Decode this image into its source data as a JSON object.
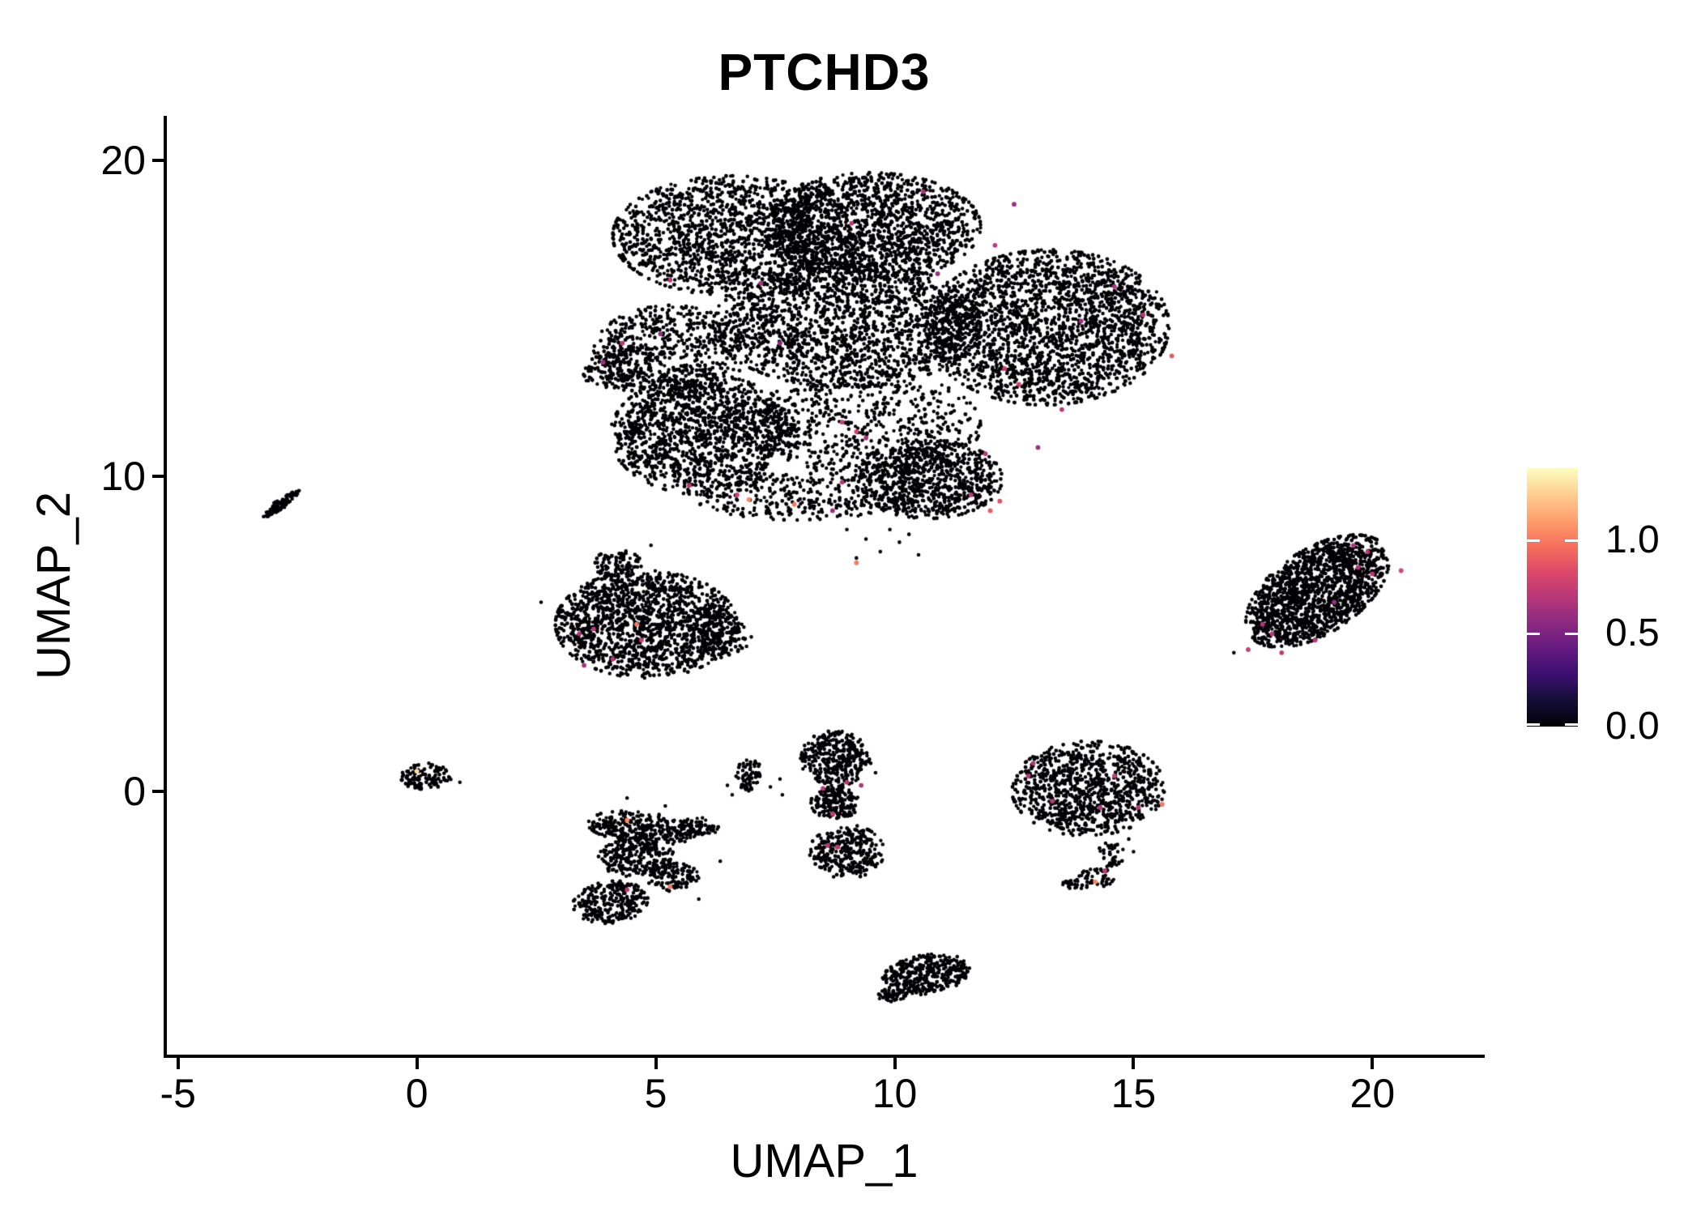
{
  "title": "PTCHD3",
  "axis": {
    "x": {
      "label": "UMAP_1",
      "tick_labels": [
        "-5",
        "0",
        "5",
        "10",
        "15",
        "20"
      ],
      "tick_values": [
        -5,
        0,
        5,
        10,
        15,
        20
      ],
      "range": [
        -5.25,
        22.3
      ]
    },
    "y": {
      "label": "UMAP_2",
      "tick_labels": [
        "0",
        "10",
        "20"
      ],
      "tick_values": [
        0,
        10,
        20
      ],
      "range": [
        -8.35,
        21.4
      ]
    }
  },
  "legend": {
    "tick_labels": [
      "1.0",
      "0.5",
      "0.0"
    ],
    "tick_values": [
      1.0,
      0.5,
      0.0
    ],
    "bar_min": 0.0,
    "bar_max": 1.387,
    "colormap": "magma",
    "gradient_stops": [
      "#000004",
      "#140E36",
      "#3B0F70",
      "#641A80",
      "#8C2981",
      "#B73779",
      "#DE4968",
      "#F76F5C",
      "#FE9F6D",
      "#FECE91",
      "#FCFDBF"
    ]
  },
  "style": {
    "background": "#FFFFFF",
    "axis_color": "#000000",
    "text_color": "#000000"
  },
  "chart_data": {
    "type": "scatter",
    "description": "UMAP feature plot of PTCHD3 expression in single cells; most cells have zero expression (black, magma 0), sparse expressing cells colored on magma scale up to ~1.39",
    "x_range": [
      -5.25,
      22.3
    ],
    "y_range": [
      -8.35,
      21.4
    ],
    "point_radius_px": 2.3,
    "expressing_point_radius_px": 2.9,
    "zero_color": "#000004",
    "clusters": [
      {
        "id": "main-top-a",
        "cx": 6.6,
        "cy": 17.6,
        "rx": 2.5,
        "ry": 1.9,
        "rot": 0,
        "n": 1500
      },
      {
        "id": "main-top-b",
        "cx": 9.5,
        "cy": 17.9,
        "rx": 2.3,
        "ry": 1.7,
        "rot": 0,
        "n": 1500
      },
      {
        "id": "main-right",
        "cx": 13.2,
        "cy": 14.7,
        "rx": 2.55,
        "ry": 2.45,
        "rot": 15,
        "n": 2200
      },
      {
        "id": "main-mid",
        "cx": 9.0,
        "cy": 14.8,
        "rx": 2.8,
        "ry": 2.0,
        "rot": 0,
        "n": 1700
      },
      {
        "id": "main-left-wedge",
        "cx": 5.3,
        "cy": 13.9,
        "rx": 1.6,
        "ry": 1.5,
        "rot": 0,
        "n": 600
      },
      {
        "id": "main-left-tip",
        "cx": 4.3,
        "cy": 13.4,
        "rx": 0.85,
        "ry": 0.7,
        "rot": 30,
        "n": 150
      },
      {
        "id": "main-lower-left",
        "cx": 6.0,
        "cy": 11.3,
        "rx": 1.95,
        "ry": 1.9,
        "rot": 0,
        "n": 1400
      },
      {
        "id": "main-lower-mid",
        "cx": 9.4,
        "cy": 11.6,
        "rx": 2.4,
        "ry": 1.7,
        "rot": 0,
        "n": 600
      },
      {
        "id": "main-bottom-knot",
        "cx": 10.7,
        "cy": 9.9,
        "rx": 1.55,
        "ry": 1.25,
        "rot": 0,
        "n": 800
      },
      {
        "id": "main-bottom-edge",
        "cx": 8.0,
        "cy": 9.35,
        "rx": 2.2,
        "ry": 0.75,
        "rot": 0,
        "n": 300
      },
      {
        "id": "left-streak",
        "cx": -2.85,
        "cy": 9.1,
        "rx": 0.6,
        "ry": 0.11,
        "rot": 49,
        "n": 80
      },
      {
        "id": "left-streak-knot",
        "cx": -2.87,
        "cy": 9.07,
        "rx": 0.16,
        "ry": 0.16,
        "rot": 0,
        "n": 25
      },
      {
        "id": "midleft",
        "cx": 4.8,
        "cy": 5.3,
        "rx": 1.9,
        "ry": 1.7,
        "rot": 0,
        "n": 1500
      },
      {
        "id": "midleft-bump",
        "cx": 4.2,
        "cy": 7.2,
        "rx": 0.5,
        "ry": 0.45,
        "rot": 0,
        "n": 90
      },
      {
        "id": "midleft-east",
        "cx": 6.3,
        "cy": 5.0,
        "rx": 0.6,
        "ry": 0.85,
        "rot": 0,
        "n": 120
      },
      {
        "id": "origin-dot",
        "cx": 0.2,
        "cy": 0.5,
        "rx": 0.55,
        "ry": 0.42,
        "rot": 10,
        "n": 120
      },
      {
        "id": "sblob-top",
        "cx": 4.7,
        "cy": -1.15,
        "rx": 1.15,
        "ry": 0.5,
        "rot": -10,
        "n": 300
      },
      {
        "id": "sblob-mid",
        "cx": 4.6,
        "cy": -2.1,
        "rx": 0.8,
        "ry": 0.6,
        "rot": 0,
        "n": 240
      },
      {
        "id": "sblob-foot",
        "cx": 4.05,
        "cy": -3.5,
        "rx": 0.8,
        "ry": 0.65,
        "rot": 20,
        "n": 260
      },
      {
        "id": "sblob-bridge",
        "cx": 5.35,
        "cy": -2.7,
        "rx": 0.55,
        "ry": 0.45,
        "rot": 0,
        "n": 110
      },
      {
        "id": "sblob-wing",
        "cx": 5.9,
        "cy": -1.1,
        "rx": 0.45,
        "ry": 0.3,
        "rot": 0,
        "n": 60
      },
      {
        "id": "crescent",
        "cx": 6.95,
        "cy": 0.55,
        "rx": 0.27,
        "ry": 0.52,
        "rot": 0,
        "n": 70
      },
      {
        "id": "column-top",
        "cx": 8.75,
        "cy": 1.05,
        "rx": 0.72,
        "ry": 0.88,
        "rot": 0,
        "n": 320
      },
      {
        "id": "column-mid",
        "cx": 8.75,
        "cy": -0.35,
        "rx": 0.5,
        "ry": 0.55,
        "rot": 0,
        "n": 180
      },
      {
        "id": "column-bottom",
        "cx": 9.0,
        "cy": -1.9,
        "rx": 0.78,
        "ry": 0.85,
        "rot": 0,
        "n": 300
      },
      {
        "id": "round-right",
        "cx": 14.05,
        "cy": 0.1,
        "rx": 1.6,
        "ry": 1.5,
        "rot": 10,
        "n": 950
      },
      {
        "id": "round-tail-a",
        "cx": 14.55,
        "cy": -1.95,
        "rx": 0.28,
        "ry": 0.45,
        "rot": 0,
        "n": 40
      },
      {
        "id": "round-tail-b",
        "cx": 14.25,
        "cy": -2.7,
        "rx": 0.4,
        "ry": 0.28,
        "rot": -20,
        "n": 45
      },
      {
        "id": "round-tail-c",
        "cx": 13.75,
        "cy": -2.95,
        "rx": 0.3,
        "ry": 0.18,
        "rot": 0,
        "n": 25
      },
      {
        "id": "bottom-comma",
        "cx": 10.65,
        "cy": -5.8,
        "rx": 0.95,
        "ry": 0.62,
        "rot": 20,
        "n": 360
      },
      {
        "id": "bottom-comma-tip",
        "cx": 9.95,
        "cy": -6.45,
        "rx": 0.3,
        "ry": 0.22,
        "rot": 0,
        "n": 45
      },
      {
        "id": "far-right",
        "cx": 18.85,
        "cy": 6.35,
        "rx": 2.05,
        "ry": 1.1,
        "rot": 54,
        "n": 1500
      }
    ],
    "stray_points": [
      [
        4.4,
        -0.2
      ],
      [
        5.2,
        -0.45
      ],
      [
        6.15,
        -1.2
      ],
      [
        6.35,
        -2.2
      ],
      [
        5.9,
        -3.4
      ],
      [
        9.5,
        0.9
      ],
      [
        9.6,
        0.6
      ],
      [
        7.4,
        0.15
      ],
      [
        7.6,
        0.4
      ],
      [
        7.65,
        -0.1
      ],
      [
        6.9,
        4.6
      ],
      [
        7.0,
        4.9
      ],
      [
        6.8,
        5.3
      ],
      [
        9.9,
        8.3
      ],
      [
        10.3,
        8.15
      ],
      [
        9.0,
        8.3
      ],
      [
        0.9,
        0.3
      ],
      [
        15.0,
        -1.9
      ],
      [
        14.9,
        -1.5
      ],
      [
        17.1,
        4.4
      ],
      [
        10.0,
        -6.6
      ],
      [
        9.2,
        7.4
      ],
      [
        9.7,
        7.6
      ],
      [
        10.1,
        7.9
      ],
      [
        10.5,
        7.5
      ],
      [
        9.4,
        8.0
      ],
      [
        6.5,
        0.2
      ],
      [
        6.6,
        -0.1
      ],
      [
        2.6,
        6.0
      ],
      [
        4.9,
        7.8
      ]
    ],
    "expressing_cells": [
      [
        4.3,
        14.2,
        0.7
      ],
      [
        3.9,
        13.6,
        0.62
      ],
      [
        5.3,
        16.2,
        0.7
      ],
      [
        7.2,
        16.1,
        0.65
      ],
      [
        5.1,
        14.5,
        0.6
      ],
      [
        9.1,
        18.0,
        0.7
      ],
      [
        8.9,
        11.7,
        0.75
      ],
      [
        9.2,
        11.4,
        0.8
      ],
      [
        9.4,
        11.2,
        0.65
      ],
      [
        8.9,
        9.8,
        0.7
      ],
      [
        5.7,
        9.7,
        0.72
      ],
      [
        6.7,
        9.4,
        0.75
      ],
      [
        6.95,
        9.25,
        1.05
      ],
      [
        7.9,
        9.1,
        1.0
      ],
      [
        8.7,
        8.9,
        0.6
      ],
      [
        12.1,
        17.3,
        0.7
      ],
      [
        12.3,
        13.4,
        0.75
      ],
      [
        12.6,
        12.9,
        0.8
      ],
      [
        13.9,
        14.9,
        0.6
      ],
      [
        15.2,
        15.1,
        0.7
      ],
      [
        14.6,
        16.0,
        0.65
      ],
      [
        11.9,
        10.7,
        0.7
      ],
      [
        12.2,
        9.2,
        0.85
      ],
      [
        11.6,
        9.4,
        0.7
      ],
      [
        13.0,
        10.9,
        0.62
      ],
      [
        15.8,
        13.8,
        0.88
      ],
      [
        12.5,
        18.6,
        0.6
      ],
      [
        10.6,
        19.0,
        0.65
      ],
      [
        13.5,
        12.1,
        0.7
      ],
      [
        12.0,
        8.9,
        0.9
      ],
      [
        9.2,
        7.25,
        1.0
      ],
      [
        10.9,
        16.4,
        0.6
      ],
      [
        7.6,
        14.2,
        0.55
      ],
      [
        4.6,
        5.3,
        1.0
      ],
      [
        3.4,
        5.0,
        0.68
      ],
      [
        3.7,
        5.15,
        0.7
      ],
      [
        4.7,
        4.8,
        0.75
      ],
      [
        4.1,
        4.2,
        0.7
      ],
      [
        3.5,
        4.0,
        0.65
      ],
      [
        0.0,
        0.65,
        1.3
      ],
      [
        4.4,
        -0.9,
        1.05
      ],
      [
        5.3,
        -3.0,
        1.0
      ],
      [
        4.4,
        -3.1,
        0.72
      ],
      [
        8.5,
        0.1,
        0.72
      ],
      [
        9.0,
        0.3,
        0.7
      ],
      [
        9.3,
        0.2,
        0.68
      ],
      [
        8.7,
        -0.7,
        0.75
      ],
      [
        8.6,
        -1.7,
        0.7
      ],
      [
        8.8,
        -1.75,
        0.72
      ],
      [
        12.9,
        0.9,
        0.7
      ],
      [
        12.8,
        0.5,
        0.72
      ],
      [
        13.3,
        -0.3,
        0.7
      ],
      [
        14.3,
        -0.5,
        0.68
      ],
      [
        14.6,
        0.5,
        0.75
      ],
      [
        15.1,
        -0.5,
        0.7
      ],
      [
        14.4,
        -2.5,
        0.72
      ],
      [
        15.6,
        -0.4,
        1.0
      ],
      [
        14.2,
        -2.85,
        1.05
      ],
      [
        19.6,
        7.8,
        0.7
      ],
      [
        19.9,
        7.6,
        0.72
      ],
      [
        19.7,
        7.1,
        0.68
      ],
      [
        20.0,
        6.9,
        0.7
      ],
      [
        20.6,
        7.0,
        0.8
      ],
      [
        17.9,
        5.0,
        0.7
      ],
      [
        17.7,
        5.3,
        0.68
      ],
      [
        18.1,
        4.4,
        0.72
      ],
      [
        18.8,
        4.8,
        0.7
      ],
      [
        17.4,
        4.5,
        0.75
      ],
      [
        19.2,
        6.0,
        0.6
      ]
    ]
  }
}
